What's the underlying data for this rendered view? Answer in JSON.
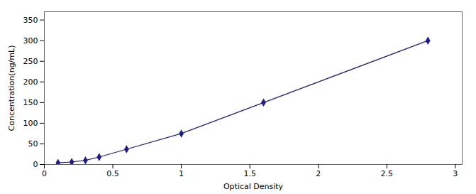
{
  "chart_data": {
    "type": "line",
    "x": [
      0.1,
      0.2,
      0.3,
      0.4,
      0.6,
      1.0,
      1.6,
      2.8
    ],
    "values": [
      4,
      6,
      10,
      18,
      37,
      75,
      150,
      300
    ],
    "x_err": [
      0.008,
      0.008,
      0.008,
      0.008,
      0.008,
      0.01,
      0.015,
      0.015
    ],
    "y_err": [
      0.5,
      0.5,
      1.0,
      1.0,
      1.5,
      2.0,
      2.5,
      3.5
    ],
    "color": "#1c1c8c",
    "marker": "diamond",
    "xlabel": "Optical Density",
    "ylabel": "Concentration(ng/mL)",
    "xlim": [
      0,
      3.05
    ],
    "ylim": [
      0,
      370
    ],
    "xticks": [
      0,
      0.5,
      1,
      1.5,
      2,
      2.5,
      3
    ],
    "yticks": [
      0,
      50,
      100,
      150,
      200,
      250,
      300,
      350
    ],
    "grid": false
  }
}
